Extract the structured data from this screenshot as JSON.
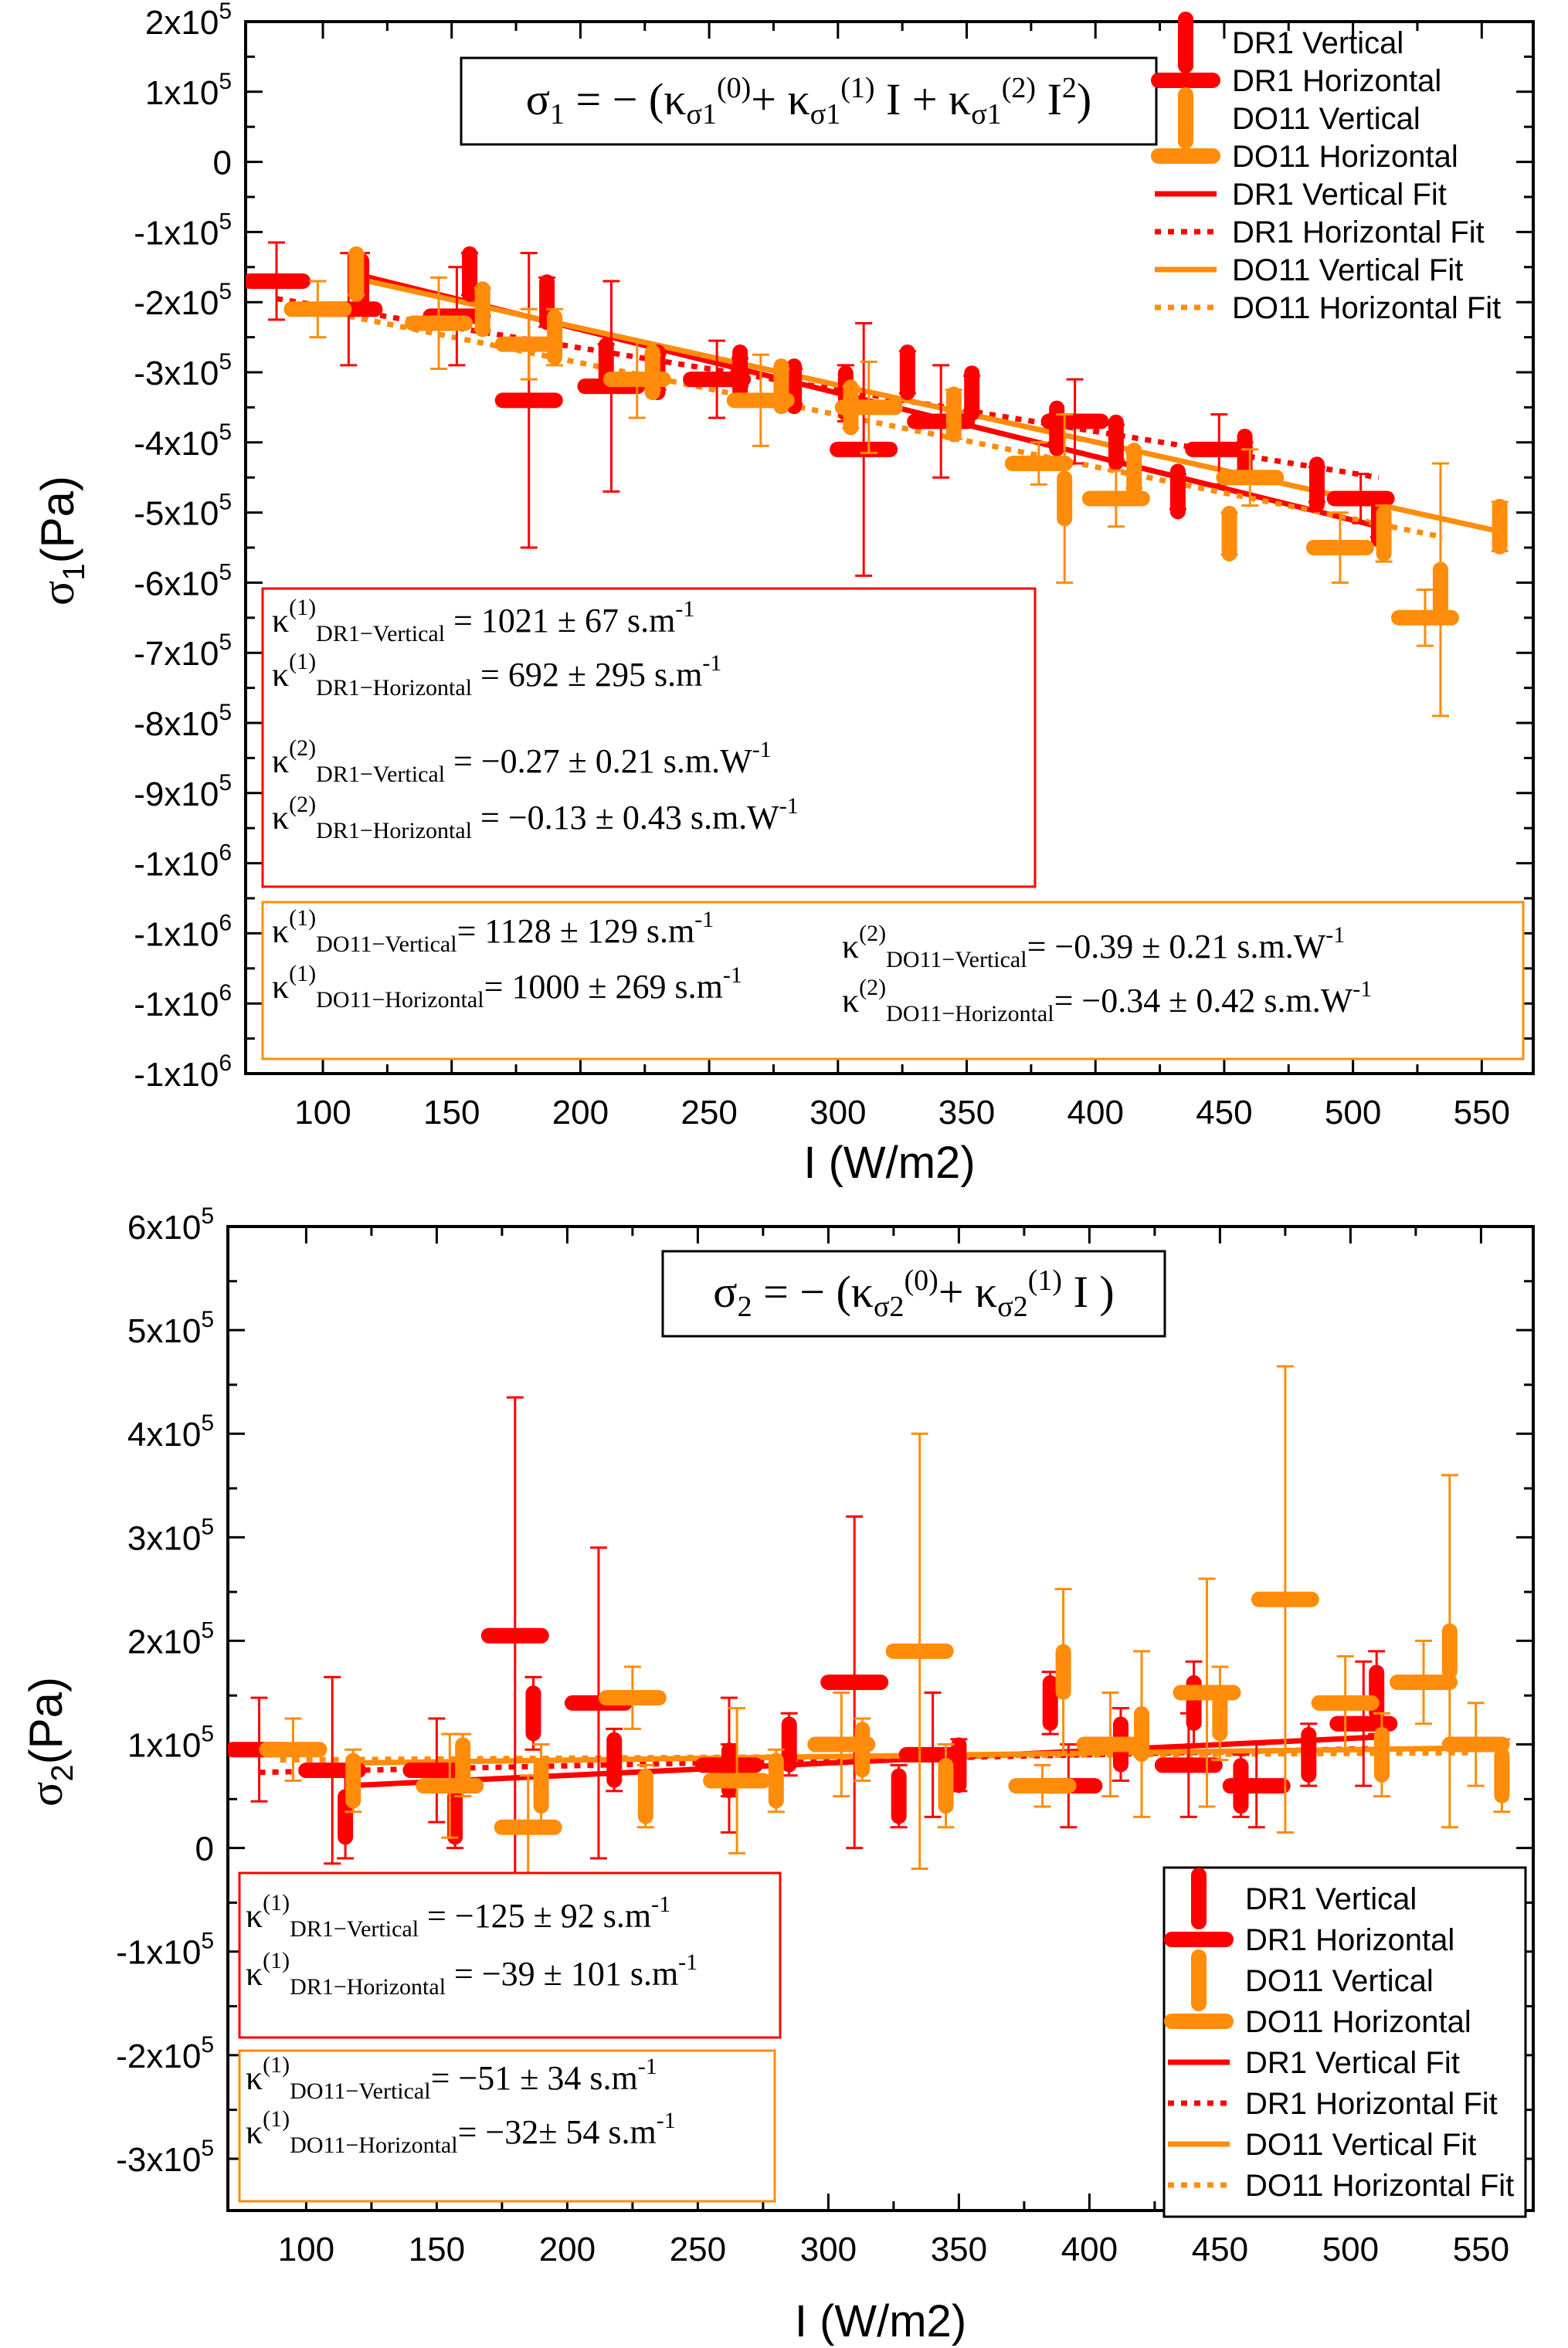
{
  "colors": {
    "dr1": "#ff0000",
    "do11": "#ff8c0a",
    "axis": "#000000"
  },
  "chart_data": [
    {
      "type": "scatter",
      "xlabel": "I (W/m2)",
      "ylabel_main": "σ",
      "ylabel_sub": "1",
      "ylabel_unit": "(Pa)",
      "xlim": [
        70,
        570
      ],
      "ylim": [
        -1300000.0,
        200000.0
      ],
      "x_ticks": [
        100,
        150,
        200,
        250,
        300,
        350,
        400,
        450,
        500,
        550
      ],
      "y_ticks": [
        {
          "v": 200000,
          "m": "2x10",
          "e": "5"
        },
        {
          "v": 100000,
          "m": "1x10",
          "e": "5"
        },
        {
          "v": 0,
          "m": "0",
          "e": ""
        },
        {
          "v": -100000,
          "m": "-1x10",
          "e": "5"
        },
        {
          "v": -200000,
          "m": "-2x10",
          "e": "5"
        },
        {
          "v": -300000,
          "m": "-3x10",
          "e": "5"
        },
        {
          "v": -400000,
          "m": "-4x10",
          "e": "5"
        },
        {
          "v": -500000,
          "m": "-5x10",
          "e": "5"
        },
        {
          "v": -600000,
          "m": "-6x10",
          "e": "5"
        },
        {
          "v": -700000,
          "m": "-7x10",
          "e": "5"
        },
        {
          "v": -800000,
          "m": "-8x10",
          "e": "5"
        },
        {
          "v": -900000,
          "m": "-9x10",
          "e": "5"
        },
        {
          "v": -1000000,
          "m": "-1x10",
          "e": "6"
        },
        {
          "v": -1100000,
          "m": "-1x10",
          "e": "6"
        },
        {
          "v": -1200000,
          "m": "-1x10",
          "e": "6"
        },
        {
          "v": -1300000,
          "m": "-1x10",
          "e": "6"
        }
      ],
      "legend_position": "top-right",
      "legend": [
        "DR1 Vertical",
        "DR1 Horizontal",
        "DO11 Vertical",
        "DO11 Horizontal",
        "DR1 Vertical Fit",
        "DR1 Horizontal Fit",
        "DO11 Vertical Fit",
        "DO11 Horizontal Fit"
      ],
      "equation": "σ1 = − (κσ1(0) + κσ1(1) I + κσ1(2) I2)",
      "series": [
        {
          "name": "DR1 Vertical",
          "points": [
            [
              115,
              -170000,
              40000
            ],
            [
              157,
              -160000,
              30000
            ],
            [
              187,
              -200000,
              35000
            ],
            [
              210,
              -290000,
              30000
            ],
            [
              230,
              -300000,
              25000
            ],
            [
              262,
              -300000,
              20000
            ],
            [
              283,
              -320000,
              25000
            ],
            [
              303,
              -330000,
              40000
            ],
            [
              327,
              -300000,
              30000
            ],
            [
              352,
              -330000,
              25000
            ],
            [
              385,
              -380000,
              20000
            ],
            [
              408,
              -400000,
              25000
            ],
            [
              432,
              -470000,
              25000
            ],
            [
              458,
              -420000,
              20000
            ],
            [
              486,
              -460000,
              25000
            ],
            [
              510,
              -510000,
              25000
            ]
          ]
        },
        {
          "name": "DR1 Horizontal",
          "points": [
            [
              82,
              -170000,
              55000
            ],
            [
              110,
              -210000,
              80000
            ],
            [
              152,
              -220000,
              70000
            ],
            [
              180,
              -340000,
              210000
            ],
            [
              212,
              -320000,
              150000
            ],
            [
              253,
              -310000,
              55000
            ],
            [
              310,
              -410000,
              180000
            ],
            [
              340,
              -370000,
              80000
            ],
            [
              392,
              -370000,
              60000
            ],
            [
              448,
              -410000,
              50000
            ],
            [
              503,
              -480000,
              35000
            ]
          ]
        },
        {
          "name": "DO11 Vertical",
          "points": [
            [
              113,
              -160000,
              30000
            ],
            [
              162,
              -210000,
              30000
            ],
            [
              190,
              -250000,
              40000
            ],
            [
              228,
              -300000,
              25000
            ],
            [
              278,
              -320000,
              25000
            ],
            [
              305,
              -350000,
              30000
            ],
            [
              345,
              -360000,
              35000
            ],
            [
              388,
              -480000,
              120000
            ],
            [
              415,
              -440000,
              25000
            ],
            [
              452,
              -530000,
              30000
            ],
            [
              512,
              -530000,
              40000
            ],
            [
              534,
              -610000,
              180000
            ],
            [
              557,
              -520000,
              35000
            ]
          ]
        },
        {
          "name": "DO11 Horizontal",
          "points": [
            [
              98,
              -210000,
              40000
            ],
            [
              145,
              -230000,
              65000
            ],
            [
              180,
              -260000,
              50000
            ],
            [
              222,
              -310000,
              55000
            ],
            [
              270,
              -340000,
              65000
            ],
            [
              312,
              -350000,
              65000
            ],
            [
              378,
              -430000,
              30000
            ],
            [
              408,
              -480000,
              40000
            ],
            [
              460,
              -450000,
              40000
            ],
            [
              495,
              -550000,
              50000
            ],
            [
              528,
              -650000,
              40000
            ]
          ]
        }
      ],
      "fits": [
        {
          "name": "DR1 Vertical Fit",
          "x": [
            115,
            510
          ],
          "y": [
            -162000,
            -520000
          ]
        },
        {
          "name": "DR1 Horizontal Fit",
          "x": [
            82,
            510
          ],
          "y": [
            -195000,
            -450000
          ]
        },
        {
          "name": "DO11 Vertical Fit",
          "x": [
            115,
            557
          ],
          "y": [
            -168000,
            -527000
          ]
        },
        {
          "name": "DO11 Horizontal Fit",
          "x": [
            90,
            535
          ],
          "y": [
            -205000,
            -535000
          ]
        }
      ],
      "annotations": {
        "dr1": [
          {
            "k": "κ",
            "sup": "(1)",
            "sub": "DR1−Vertical",
            "val": " = 1021 ± 67 s.m",
            "exp": "-1"
          },
          {
            "k": "κ",
            "sup": "(1)",
            "sub": "DR1−Horizontal",
            "val": " = 692 ± 295 s.m",
            "exp": "-1"
          },
          {
            "k": "κ",
            "sup": "(2)",
            "sub": "DR1−Vertical",
            "val": " = −0.27 ± 0.21 s.m.W",
            "exp": "-1"
          },
          {
            "k": "κ",
            "sup": "(2)",
            "sub": "DR1−Horizontal",
            "val": " = −0.13 ± 0.43 s.m.W",
            "exp": "-1"
          }
        ],
        "do11_left": [
          {
            "k": "κ",
            "sup": "(1)",
            "sub": "DO11−Vertical",
            "val": "= 1128 ± 129 s.m",
            "exp": "-1"
          },
          {
            "k": "κ",
            "sup": "(1)",
            "sub": "DO11−Horizontal",
            "val": "= 1000 ± 269 s.m",
            "exp": "-1"
          }
        ],
        "do11_right": [
          {
            "k": "κ",
            "sup": "(2)",
            "sub": "DO11−Vertical",
            "val": "=  −0.39 ± 0.21 s.m.W",
            "exp": "-1"
          },
          {
            "k": "κ",
            "sup": "(2)",
            "sub": "DO11−Horizontal",
            "val": "= −0.34 ± 0.42 s.m.W",
            "exp": "-1"
          }
        ]
      }
    },
    {
      "type": "scatter",
      "xlabel": "I (W/m2)",
      "ylabel_main": "σ",
      "ylabel_sub": "2",
      "ylabel_unit": "(Pa)",
      "xlim": [
        70,
        570
      ],
      "ylim": [
        -350000,
        600000
      ],
      "x_ticks": [
        100,
        150,
        200,
        250,
        300,
        350,
        400,
        450,
        500,
        550
      ],
      "y_ticks": [
        {
          "v": 600000,
          "m": "6x10",
          "e": "5"
        },
        {
          "v": 500000,
          "m": "5x10",
          "e": "5"
        },
        {
          "v": 400000,
          "m": "4x10",
          "e": "5"
        },
        {
          "v": 300000,
          "m": "3x10",
          "e": "5"
        },
        {
          "v": 200000,
          "m": "2x10",
          "e": "5"
        },
        {
          "v": 100000,
          "m": "1x10",
          "e": "5"
        },
        {
          "v": 0,
          "m": "0",
          "e": ""
        },
        {
          "v": -100000,
          "m": "-1x10",
          "e": "5"
        },
        {
          "v": -200000,
          "m": "-2x10",
          "e": "5"
        },
        {
          "v": -300000,
          "m": "-3x10",
          "e": "5"
        }
      ],
      "legend_position": "bottom-right",
      "legend": [
        "DR1 Vertical",
        "DR1 Horizontal",
        "DO11 Vertical",
        "DO11 Horizontal",
        "DR1 Vertical Fit",
        "DR1 Horizontal Fit",
        "DO11 Vertical Fit",
        "DO11 Horizontal Fit"
      ],
      "equation": "σ2 = − (κσ2(0) + κσ2(1) I )",
      "series": [
        {
          "name": "DR1 Vertical",
          "points": [
            [
              115,
              30000,
              40000
            ],
            [
              157,
              30000,
              30000
            ],
            [
              187,
              130000,
              35000
            ],
            [
              218,
              85000,
              30000
            ],
            [
              262,
              75000,
              25000
            ],
            [
              285,
              100000,
              30000
            ],
            [
              327,
              50000,
              30000
            ],
            [
              350,
              80000,
              25000
            ],
            [
              385,
              140000,
              30000
            ],
            [
              412,
              100000,
              35000
            ],
            [
              440,
              140000,
              40000
            ],
            [
              458,
              60000,
              30000
            ],
            [
              484,
              90000,
              30000
            ],
            [
              510,
              150000,
              40000
            ]
          ]
        },
        {
          "name": "DR1 Horizontal",
          "points": [
            [
              82,
              95000,
              50000
            ],
            [
              110,
              75000,
              90000
            ],
            [
              150,
              75000,
              50000
            ],
            [
              180,
              205000,
              230000
            ],
            [
              212,
              140000,
              150000
            ],
            [
              262,
              80000,
              65000
            ],
            [
              310,
              160000,
              160000
            ],
            [
              340,
              90000,
              60000
            ],
            [
              392,
              60000,
              40000
            ],
            [
              438,
              80000,
              50000
            ],
            [
              464,
              60000,
              40000
            ],
            [
              505,
              120000,
              60000
            ]
          ]
        },
        {
          "name": "DO11 Vertical",
          "points": [
            [
              118,
              65000,
              30000
            ],
            [
              160,
              80000,
              30000
            ],
            [
              190,
              60000,
              40000
            ],
            [
              230,
              50000,
              30000
            ],
            [
              280,
              65000,
              30000
            ],
            [
              313,
              95000,
              30000
            ],
            [
              345,
              60000,
              40000
            ],
            [
              390,
              170000,
              80000
            ],
            [
              420,
              110000,
              80000
            ],
            [
              450,
              130000,
              45000
            ],
            [
              512,
              90000,
              40000
            ],
            [
              538,
              190000,
              170000
            ],
            [
              558,
              70000,
              35000
            ]
          ]
        },
        {
          "name": "DO11 Horizontal",
          "points": [
            [
              95,
              95000,
              30000
            ],
            [
              155,
              60000,
              50000
            ],
            [
              185,
              20000,
              50000
            ],
            [
              225,
              145000,
              30000
            ],
            [
              265,
              65000,
              70000
            ],
            [
              305,
              100000,
              50000
            ],
            [
              335,
              190000,
              210000
            ],
            [
              382,
              60000,
              20000
            ],
            [
              408,
              100000,
              50000
            ],
            [
              445,
              150000,
              110000
            ],
            [
              475,
              240000,
              225000
            ],
            [
              498,
              140000,
              45000
            ],
            [
              528,
              160000,
              40000
            ],
            [
              548,
              100000,
              40000
            ]
          ]
        }
      ],
      "fits": [
        {
          "name": "DR1 Vertical Fit",
          "x": [
            115,
            510
          ],
          "y": [
            60000,
            107000
          ]
        },
        {
          "name": "DR1 Horizontal Fit",
          "x": [
            82,
            510
          ],
          "y": [
            73000,
            96000
          ]
        },
        {
          "name": "DO11 Vertical Fit",
          "x": [
            115,
            560
          ],
          "y": [
            82000,
            97000
          ]
        },
        {
          "name": "DO11 Horizontal Fit",
          "x": [
            90,
            545
          ],
          "y": [
            85000,
            92000
          ]
        }
      ],
      "annotations": {
        "dr1": [
          {
            "k": "κ",
            "sup": "(1)",
            "sub": "DR1−Vertical",
            "val": " = −125 ± 92 s.m",
            "exp": "-1"
          },
          {
            "k": "κ",
            "sup": "(1)",
            "sub": "DR1−Horizontal",
            "val": " = −39 ± 101 s.m",
            "exp": "-1"
          }
        ],
        "do11_left": [
          {
            "k": "κ",
            "sup": "(1)",
            "sub": "DO11−Vertical",
            "val": "= −51 ± 34 s.m",
            "exp": "-1"
          },
          {
            "k": "κ",
            "sup": "(1)",
            "sub": "DO11−Horizontal",
            "val": "= −32± 54 s.m",
            "exp": "-1"
          }
        ],
        "do11_right": []
      }
    }
  ]
}
